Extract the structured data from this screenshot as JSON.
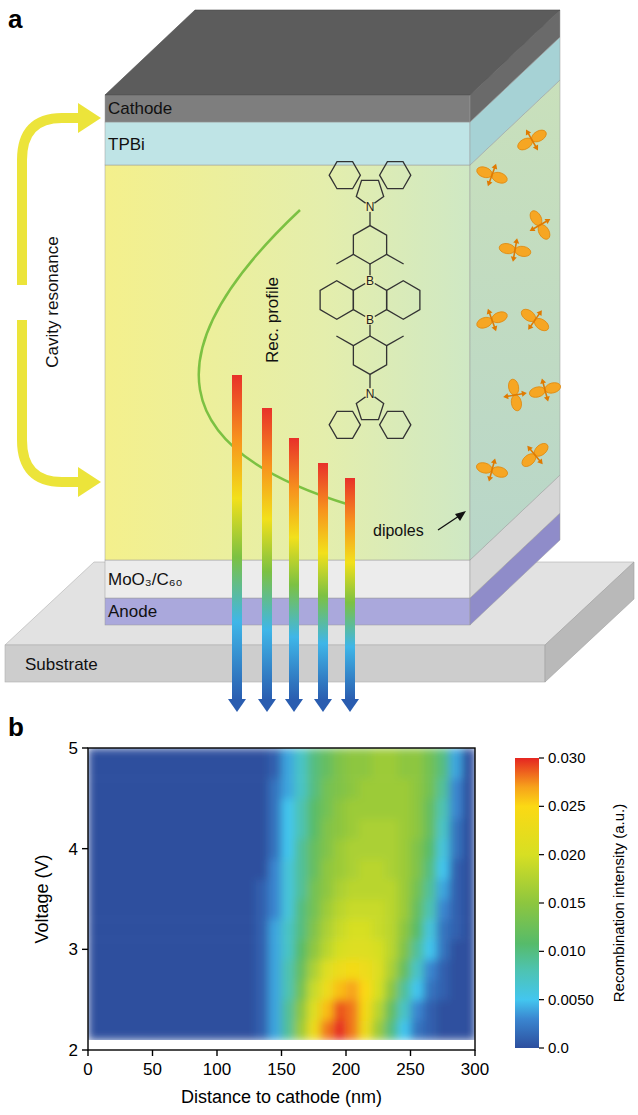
{
  "diagram": {
    "panel_label": "a",
    "layers": [
      "Cathode",
      "TPBi",
      "MoO₃/C₆₀",
      "Anode",
      "Substrate"
    ],
    "cavity_label": "Cavity resonance",
    "profile_label": "Rec. profile",
    "dipoles_label": "dipoles",
    "molecule_atoms": [
      "N",
      "B",
      "B",
      "N"
    ]
  },
  "chart_data": {
    "panel_label": "b",
    "type": "heatmap",
    "xlabel": "Distance to cathode (nm)",
    "ylabel": "Voltage (V)",
    "xlim": [
      0,
      300
    ],
    "xticks": [
      0,
      50,
      100,
      150,
      200,
      250,
      300
    ],
    "ylim": [
      2,
      5
    ],
    "yticks": [
      2,
      3,
      4,
      5
    ],
    "grid": false,
    "x_bins": [
      0,
      50,
      100,
      130,
      140,
      150,
      160,
      170,
      180,
      190,
      200,
      210,
      220,
      230,
      240,
      250,
      260,
      270,
      280,
      290,
      300
    ],
    "y_bins": [
      2.1,
      2.3,
      2.5,
      2.7,
      2.9,
      3.1,
      3.3,
      3.5,
      3.7,
      3.9,
      4.1,
      4.3,
      4.5,
      4.7,
      5.0
    ],
    "values": [
      [
        0,
        0,
        0,
        0.001,
        0.004,
        0.009,
        0.016,
        0.023,
        0.028,
        0.03,
        0.028,
        0.023,
        0.016,
        0.01,
        0.005,
        0.002,
        0.001,
        0,
        0,
        0
      ],
      [
        0,
        0,
        0,
        0.001,
        0.004,
        0.009,
        0.015,
        0.021,
        0.026,
        0.029,
        0.028,
        0.024,
        0.018,
        0.012,
        0.007,
        0.003,
        0.001,
        0,
        0,
        0
      ],
      [
        0,
        0,
        0,
        0.001,
        0.004,
        0.008,
        0.013,
        0.019,
        0.023,
        0.026,
        0.027,
        0.025,
        0.02,
        0.015,
        0.009,
        0.005,
        0.002,
        0.001,
        0,
        0
      ],
      [
        0,
        0,
        0,
        0.001,
        0.004,
        0.008,
        0.012,
        0.017,
        0.021,
        0.023,
        0.024,
        0.023,
        0.021,
        0.017,
        0.012,
        0.007,
        0.003,
        0.001,
        0,
        0
      ],
      [
        0,
        0,
        0,
        0.001,
        0.004,
        0.007,
        0.011,
        0.015,
        0.018,
        0.02,
        0.021,
        0.021,
        0.02,
        0.018,
        0.014,
        0.009,
        0.005,
        0.002,
        0,
        0
      ],
      [
        0,
        0,
        0,
        0.001,
        0.004,
        0.007,
        0.01,
        0.014,
        0.017,
        0.019,
        0.02,
        0.02,
        0.019,
        0.018,
        0.015,
        0.011,
        0.006,
        0.002,
        0.001,
        0
      ],
      [
        0,
        0,
        0,
        0.001,
        0.003,
        0.006,
        0.01,
        0.013,
        0.016,
        0.018,
        0.019,
        0.019,
        0.019,
        0.018,
        0.016,
        0.012,
        0.008,
        0.003,
        0.001,
        0
      ],
      [
        0,
        0,
        0,
        0.001,
        0.003,
        0.006,
        0.009,
        0.013,
        0.015,
        0.017,
        0.018,
        0.018,
        0.018,
        0.018,
        0.016,
        0.013,
        0.009,
        0.004,
        0.001,
        0
      ],
      [
        0,
        0,
        0,
        0,
        0.003,
        0.006,
        0.009,
        0.012,
        0.015,
        0.016,
        0.017,
        0.018,
        0.018,
        0.017,
        0.016,
        0.014,
        0.01,
        0.005,
        0.001,
        0
      ],
      [
        0,
        0,
        0,
        0,
        0.002,
        0.005,
        0.009,
        0.012,
        0.014,
        0.016,
        0.017,
        0.017,
        0.017,
        0.017,
        0.016,
        0.014,
        0.011,
        0.006,
        0.002,
        0
      ],
      [
        0,
        0,
        0,
        0,
        0.002,
        0.005,
        0.008,
        0.011,
        0.014,
        0.015,
        0.016,
        0.017,
        0.017,
        0.017,
        0.016,
        0.015,
        0.012,
        0.007,
        0.002,
        0
      ],
      [
        0,
        0,
        0,
        0,
        0.002,
        0.005,
        0.008,
        0.011,
        0.013,
        0.015,
        0.016,
        0.016,
        0.016,
        0.016,
        0.016,
        0.015,
        0.012,
        0.008,
        0.003,
        0
      ],
      [
        0,
        0,
        0,
        0,
        0.002,
        0.004,
        0.007,
        0.01,
        0.013,
        0.014,
        0.015,
        0.016,
        0.016,
        0.016,
        0.016,
        0.015,
        0.013,
        0.009,
        0.003,
        0
      ],
      [
        0,
        0,
        0,
        0,
        0.001,
        0.004,
        0.007,
        0.01,
        0.012,
        0.014,
        0.015,
        0.015,
        0.016,
        0.016,
        0.015,
        0.015,
        0.013,
        0.01,
        0.004,
        0
      ]
    ],
    "colorbar_label": "Recombination intensity (a.u.)",
    "colorbar_range": [
      0,
      0.03
    ],
    "colorbar_ticks": [
      {
        "value": 0,
        "label": "0.0"
      },
      {
        "value": 0.005,
        "label": "0.0050"
      },
      {
        "value": 0.01,
        "label": "0.010"
      },
      0.015,
      {
        "value": 0.02,
        "label": "0.020"
      },
      0.025,
      {
        "value": 0.03,
        "label": "0.030"
      }
    ]
  }
}
